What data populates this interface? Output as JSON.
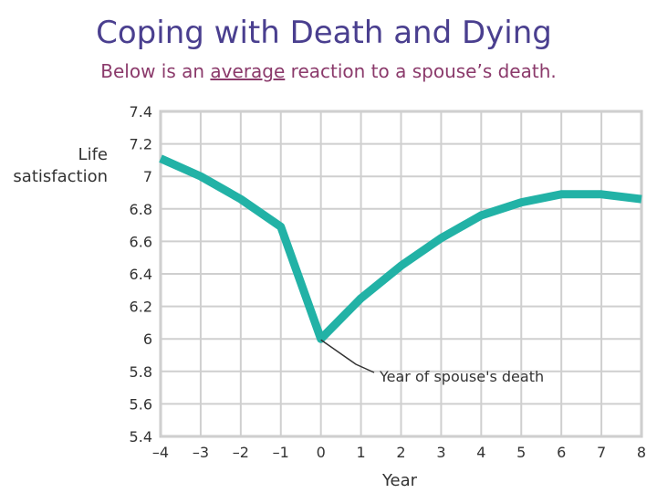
{
  "slide": {
    "title": "Coping with Death and Dying",
    "subtitle_pre": "Below is an ",
    "subtitle_em": "average",
    "subtitle_post": " reaction to a spouse’s death."
  },
  "chart_data": {
    "type": "line",
    "xlabel": "Year",
    "ylabel_line1": "Life",
    "ylabel_line2": "satisfaction",
    "x": [
      -4,
      -3,
      -2,
      -1,
      0,
      1,
      2,
      3,
      4,
      5,
      6,
      7,
      8
    ],
    "series": [
      {
        "values": [
          7.11,
          7.0,
          6.86,
          6.69,
          6.0,
          6.25,
          6.45,
          6.62,
          6.76,
          6.84,
          6.89,
          6.89,
          6.86
        ]
      }
    ],
    "xticks": [
      "–4",
      "–3",
      "–2",
      "–1",
      "0",
      "1",
      "2",
      "3",
      "4",
      "5",
      "6",
      "7",
      "8"
    ],
    "yticks": [
      "5.4",
      "5.6",
      "5.8",
      "6",
      "6.2",
      "6.4",
      "6.6",
      "6.8",
      "7",
      "7.2",
      "7.4"
    ],
    "xlim": [
      -4,
      8
    ],
    "ylim": [
      5.4,
      7.4
    ],
    "grid": true,
    "line_color": "#22b2a6",
    "annotation": {
      "text": "Year of spouse's death",
      "x": 0,
      "y": 6.0
    }
  }
}
